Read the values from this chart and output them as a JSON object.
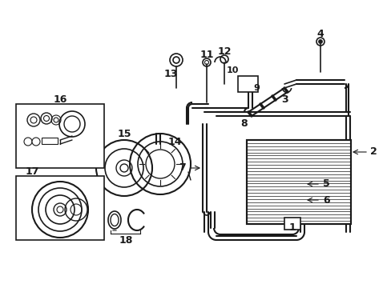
{
  "bg_color": "#ffffff",
  "lc": "#1a1a1a",
  "lw": 1.2,
  "fig_w": 4.89,
  "fig_h": 3.6,
  "dpi": 100
}
